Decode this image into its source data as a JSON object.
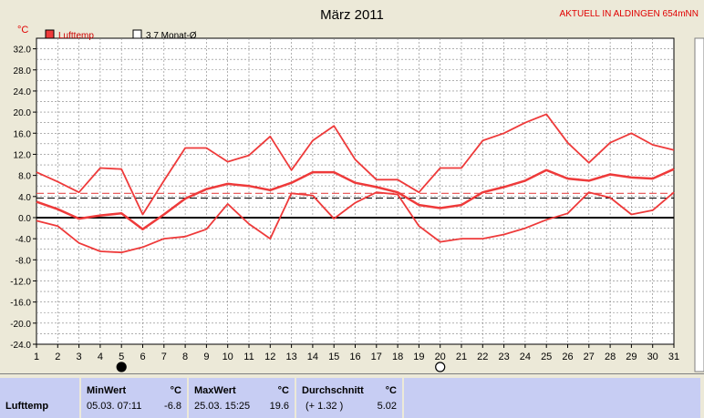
{
  "chart_data": {
    "type": "line",
    "title": "März 2011",
    "subtitle": "AKTUELL IN ALDINGEN 654mNN",
    "ylabel": "°C",
    "ylim": [
      -24,
      34
    ],
    "yticks": [
      "32.0",
      "28.0",
      "24.0",
      "20.0",
      "16.0",
      "12.0",
      "8.0",
      "4.0",
      "0.0",
      "-4.0",
      "-8.0",
      "-12.0",
      "-16.0",
      "-20.0",
      "-24.0"
    ],
    "ytick_values": [
      32,
      28,
      24,
      20,
      16,
      12,
      8,
      4,
      0,
      -4,
      -8,
      -12,
      -16,
      -20,
      -24
    ],
    "categories": [
      "1",
      "2",
      "3",
      "4",
      "5",
      "6",
      "7",
      "8",
      "9",
      "10",
      "11",
      "12",
      "13",
      "14",
      "15",
      "16",
      "17",
      "18",
      "19",
      "20",
      "21",
      "22",
      "23",
      "24",
      "25",
      "26",
      "27",
      "28",
      "29",
      "30",
      "31"
    ],
    "legend": [
      "Lufttemp",
      "3.7 Monat-Ø"
    ],
    "legend_position": "top-left",
    "grid": true,
    "monthly_mean": 3.7,
    "reference_line": 4.6,
    "series": [
      {
        "name": "max",
        "values": [
          8.6,
          6.8,
          4.8,
          9.4,
          9.2,
          0.6,
          7.0,
          13.2,
          13.2,
          10.6,
          11.8,
          15.4,
          9.0,
          14.6,
          17.4,
          11.0,
          7.2,
          7.2,
          4.8,
          9.4,
          9.4,
          14.6,
          16.0,
          18.0,
          19.6,
          14.2,
          10.4,
          14.2,
          16.0,
          13.8,
          12.8
        ]
      },
      {
        "name": "mean",
        "values": [
          3.0,
          1.6,
          -0.2,
          0.4,
          0.8,
          -2.2,
          0.6,
          3.6,
          5.4,
          6.4,
          6.0,
          5.2,
          6.6,
          8.6,
          8.6,
          6.6,
          5.8,
          4.8,
          2.4,
          1.8,
          2.4,
          4.8,
          5.8,
          7.0,
          9.0,
          7.4,
          7.0,
          8.2,
          7.6,
          7.4,
          9.2
        ]
      },
      {
        "name": "min",
        "values": [
          -0.6,
          -1.6,
          -4.8,
          -6.4,
          -6.6,
          -5.6,
          -4.0,
          -3.6,
          -2.2,
          2.6,
          -1.2,
          -4.0,
          4.6,
          4.2,
          -0.2,
          2.8,
          4.8,
          4.4,
          -1.6,
          -4.6,
          -4.0,
          -4.0,
          -3.2,
          -2.0,
          -0.4,
          0.8,
          4.8,
          3.8,
          0.6,
          1.4,
          4.8
        ]
      }
    ],
    "moon_phases": [
      {
        "day": "5",
        "phase": "new-moon"
      },
      {
        "day": "20",
        "phase": "full-moon"
      }
    ]
  },
  "colors": {
    "series": "#ee3a3a",
    "reference": "#e84c4c",
    "mean_line": "#000000",
    "zero_line": "#000000",
    "grid": "#808080",
    "subtitle": "#e00000",
    "stats_bg": "#c7cdf3"
  },
  "stats": {
    "row_label": "Lufttemp",
    "min_header": "MinWert",
    "min_unit": "°C",
    "min_time": "05.03.  07:11",
    "min_value": "-6.8",
    "max_header": "MaxWert",
    "max_unit": "°C",
    "max_time": "25.03.  15:25",
    "max_value": "19.6",
    "avg_header": "Durchschnitt",
    "avg_unit": "°C",
    "avg_delta": "(+ 1.32 )",
    "avg_value": "5.02"
  }
}
